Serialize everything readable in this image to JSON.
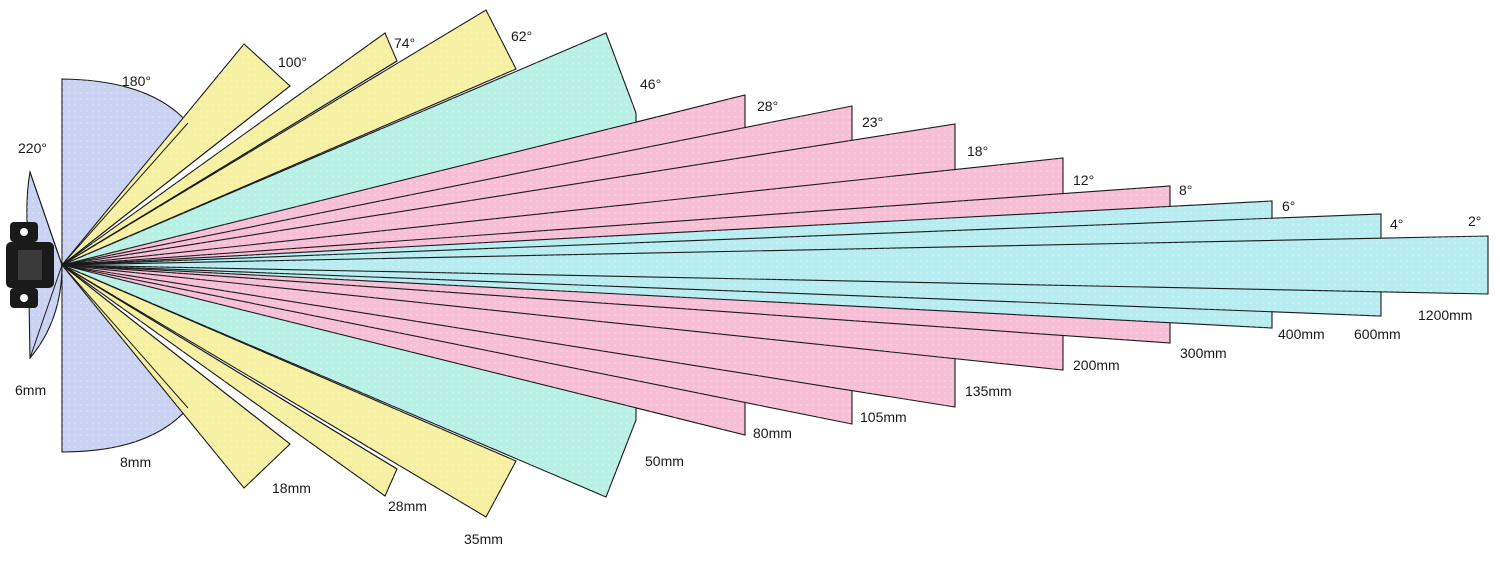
{
  "diagram": {
    "colors": {
      "fisheye": "#c9d2f2",
      "wide": "#f5f0a2",
      "normal": "#b8f0e6",
      "tele": "#f6bfd6",
      "supertele": "#b7ecf0",
      "outline": "#1a1a1a"
    },
    "icon": "camera-icon",
    "lenses": [
      {
        "focal": "6mm",
        "angle": "220°",
        "group": "fisheye"
      },
      {
        "focal": "8mm",
        "angle": "180°",
        "group": "fisheye"
      },
      {
        "focal": "18mm",
        "angle": "100°",
        "group": "wide"
      },
      {
        "focal": "28mm",
        "angle": "74°",
        "group": "wide"
      },
      {
        "focal": "35mm",
        "angle": "62°",
        "group": "wide"
      },
      {
        "focal": "50mm",
        "angle": "46°",
        "group": "normal"
      },
      {
        "focal": "80mm",
        "angle": "28°",
        "group": "tele"
      },
      {
        "focal": "105mm",
        "angle": "23°",
        "group": "tele"
      },
      {
        "focal": "135mm",
        "angle": "18°",
        "group": "tele"
      },
      {
        "focal": "200mm",
        "angle": "12°",
        "group": "tele"
      },
      {
        "focal": "300mm",
        "angle": "8°",
        "group": "tele"
      },
      {
        "focal": "400mm",
        "angle": "6°",
        "group": "supertele"
      },
      {
        "focal": "600mm",
        "angle": "4°",
        "group": "supertele"
      },
      {
        "focal": "1200mm",
        "angle": "2°",
        "group": "supertele"
      }
    ]
  }
}
